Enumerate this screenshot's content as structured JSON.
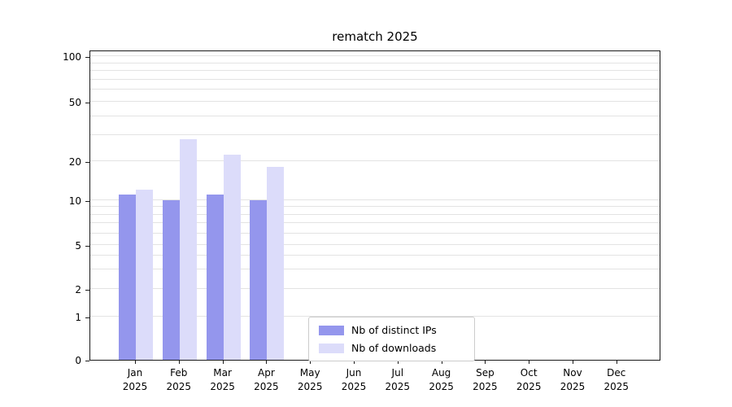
{
  "chart_data": {
    "type": "bar",
    "title": "rematch 2025",
    "categories": [
      "Jan",
      "Feb",
      "Mar",
      "Apr",
      "May",
      "Jun",
      "Jul",
      "Aug",
      "Sep",
      "Oct",
      "Nov",
      "Dec"
    ],
    "year_label": "2025",
    "series": [
      {
        "name": "Nb of distinct IPs",
        "color": "#9496ed",
        "values": [
          11,
          10,
          11,
          10,
          0,
          0,
          0,
          0,
          0,
          0,
          0,
          0
        ]
      },
      {
        "name": "Nb of downloads",
        "color": "#dcdcfa",
        "values": [
          12,
          28,
          22,
          18,
          0,
          0,
          0,
          0,
          0,
          0,
          0,
          0
        ]
      }
    ],
    "xlabel": "",
    "ylabel": "",
    "y_scale": "symlog",
    "y_ticks": [
      0,
      1,
      2,
      5,
      10,
      20,
      50,
      100
    ],
    "y_minor_gridlines": [
      1,
      2,
      3,
      4,
      5,
      6,
      7,
      8,
      9,
      10,
      20,
      30,
      40,
      50,
      60,
      70,
      80,
      90,
      100
    ],
    "ylim": [
      0,
      100
    ],
    "grid": "horizontal",
    "legend_position": "lower-center"
  }
}
